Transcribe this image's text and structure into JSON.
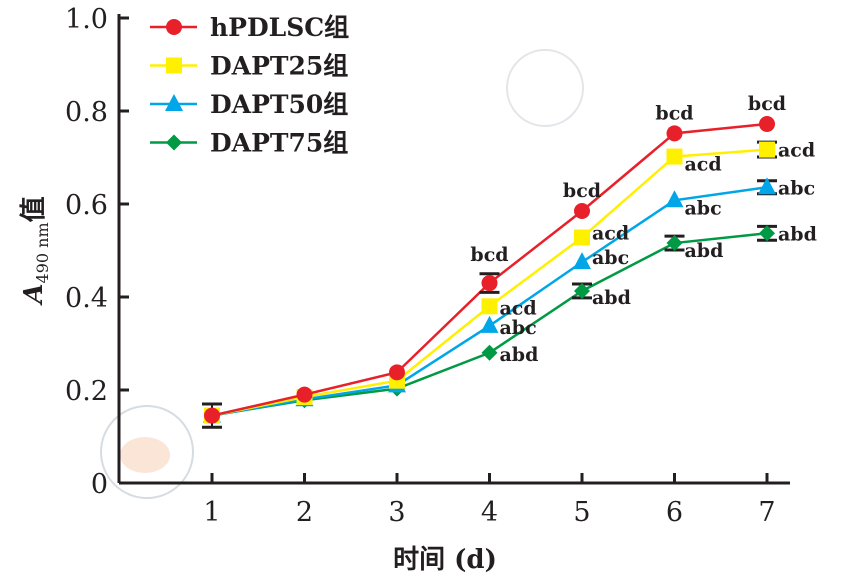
{
  "chart_data": {
    "type": "line",
    "title": "",
    "xlabel": "时间 (d)",
    "ylabel": {
      "main": "A",
      "sub": "490 nm",
      "suffix": "值"
    },
    "x": [
      1,
      2,
      3,
      4,
      5,
      6,
      7
    ],
    "x_tick_labels": [
      "1",
      "2",
      "3",
      "4",
      "5",
      "6",
      "7"
    ],
    "y_tick_labels": [
      "0",
      "0.2",
      "0.4",
      "0.6",
      "0.8",
      "1.0"
    ],
    "y_ticks": [
      0,
      0.2,
      0.4,
      0.6,
      0.8,
      1.0
    ],
    "ylim": [
      0,
      1.0
    ],
    "xlim": [
      0.1,
      7.3
    ],
    "legend_position": "top-left",
    "series": [
      {
        "name": "hPDLSC组",
        "color": "#e8202a",
        "marker": "circle",
        "values": [
          0.145,
          0.19,
          0.238,
          0.43,
          0.585,
          0.752,
          0.772
        ],
        "errors": [
          0.025,
          0,
          0,
          0.02,
          0,
          0,
          0
        ],
        "annotations": [
          "",
          "",
          "",
          "bcd",
          "bcd",
          "bcd",
          "bcd"
        ]
      },
      {
        "name": "DAPT25组",
        "color": "#fff000",
        "marker": "square",
        "values": [
          0.145,
          0.185,
          0.22,
          0.38,
          0.528,
          0.702,
          0.717
        ],
        "errors": [
          0,
          0,
          0,
          0,
          0,
          0,
          0.016
        ],
        "annotations": [
          "",
          "",
          "",
          "acd",
          "acd",
          "acd",
          "acd"
        ]
      },
      {
        "name": "DAPT50组",
        "color": "#00a6e8",
        "marker": "triangle",
        "values": [
          0.145,
          0.18,
          0.21,
          0.338,
          0.475,
          0.608,
          0.636
        ],
        "errors": [
          0,
          0,
          0,
          0,
          0,
          0,
          0.014
        ],
        "annotations": [
          "",
          "",
          "",
          "abc",
          "abc",
          "abc",
          "abc"
        ]
      },
      {
        "name": "DAPT75组",
        "color": "#009a44",
        "marker": "diamond",
        "values": [
          0.145,
          0.178,
          0.203,
          0.28,
          0.413,
          0.516,
          0.537
        ],
        "errors": [
          0,
          0,
          0,
          0,
          0.015,
          0.015,
          0.015
        ],
        "annotations": [
          "",
          "",
          "",
          "abd",
          "abd",
          "abd",
          "abd"
        ]
      }
    ]
  }
}
